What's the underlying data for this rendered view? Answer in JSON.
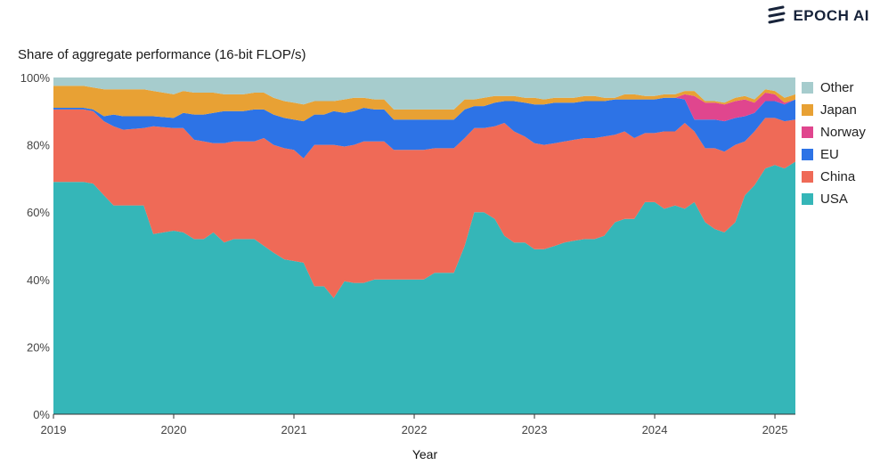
{
  "brand": {
    "name": "EPOCH AI",
    "icon": "epoch-logo-icon"
  },
  "chart_data": {
    "type": "area",
    "stacked": true,
    "normalized": true,
    "title": "Share of aggregate performance (16-bit FLOP/s)",
    "xlabel": "Year",
    "ylabel": "",
    "xlim": [
      2019.0,
      2025.17
    ],
    "ylim": [
      0,
      100
    ],
    "x_ticks": [
      2019,
      2020,
      2021,
      2022,
      2023,
      2024,
      2025
    ],
    "x_tick_labels": [
      "2019",
      "2020",
      "2021",
      "2022",
      "2023",
      "2024",
      "2025"
    ],
    "y_ticks": [
      0,
      20,
      40,
      60,
      80,
      100
    ],
    "y_tick_labels": [
      "0%",
      "20%",
      "40%",
      "60%",
      "80%",
      "100%"
    ],
    "legend_position": "right",
    "x": [
      2019.0,
      2019.25,
      2019.33,
      2019.42,
      2019.5,
      2019.58,
      2019.75,
      2019.83,
      2020.0,
      2020.08,
      2020.17,
      2020.25,
      2020.33,
      2020.42,
      2020.5,
      2020.58,
      2020.67,
      2020.75,
      2020.83,
      2020.92,
      2021.0,
      2021.08,
      2021.17,
      2021.25,
      2021.33,
      2021.42,
      2021.5,
      2021.58,
      2021.67,
      2021.75,
      2021.83,
      2022.0,
      2022.08,
      2022.17,
      2022.25,
      2022.33,
      2022.42,
      2022.5,
      2022.58,
      2022.67,
      2022.75,
      2022.83,
      2022.92,
      2023.0,
      2023.08,
      2023.17,
      2023.25,
      2023.33,
      2023.42,
      2023.5,
      2023.58,
      2023.67,
      2023.75,
      2023.83,
      2023.92,
      2024.0,
      2024.08,
      2024.17,
      2024.25,
      2024.33,
      2024.42,
      2024.5,
      2024.58,
      2024.67,
      2024.75,
      2024.83,
      2024.92,
      2025.0,
      2025.08,
      2025.17
    ],
    "series": [
      {
        "name": "USA",
        "color": "#35b6b8",
        "values": [
          69,
          69,
          68.5,
          65,
          62,
          62,
          62,
          53.5,
          54.5,
          54,
          52,
          52,
          54,
          51,
          52,
          52,
          52,
          50,
          48,
          46,
          45.5,
          45,
          38,
          38,
          34.5,
          39.5,
          39,
          39,
          40,
          40,
          40,
          40,
          40,
          42,
          42,
          42,
          50,
          60,
          60,
          58,
          53,
          51,
          51,
          49,
          49,
          50,
          51,
          51.5,
          52,
          52,
          53,
          57,
          58,
          58,
          63,
          63,
          61,
          62,
          61,
          63,
          57,
          55,
          54,
          57,
          65,
          68,
          73,
          74,
          73,
          75
        ]
      },
      {
        "name": "China",
        "color": "#ef6a57",
        "values": [
          21.5,
          21.5,
          21.5,
          22,
          23.5,
          22.5,
          23,
          32,
          30.5,
          31,
          29.5,
          29,
          26.5,
          29.5,
          29,
          29,
          29,
          32,
          32,
          33,
          33,
          31,
          42,
          42,
          45.5,
          40,
          41,
          42,
          41,
          41,
          38.5,
          38.5,
          38.5,
          37,
          37,
          37,
          32,
          25,
          25,
          27.5,
          33.5,
          33,
          31.5,
          31.5,
          31,
          30.5,
          30,
          30,
          30,
          30,
          29.5,
          26,
          26,
          24,
          20.5,
          20.5,
          23,
          22,
          25.5,
          21,
          22,
          24,
          24,
          23,
          16,
          16,
          15,
          14,
          14,
          12.5
        ]
      },
      {
        "name": "EU",
        "color": "#2d73e6",
        "values": [
          0.5,
          0.5,
          0.5,
          1.5,
          3.5,
          4,
          3.5,
          3,
          3,
          4.5,
          7.5,
          8,
          9,
          9.5,
          9,
          9,
          9.5,
          8.5,
          9,
          9,
          9,
          11,
          9,
          9,
          10,
          10,
          10,
          10,
          9.5,
          9.5,
          9,
          9,
          9,
          8.5,
          8.5,
          8.5,
          8.5,
          6.5,
          6.5,
          7,
          6.5,
          9,
          10,
          11.5,
          12,
          12,
          11.5,
          11,
          11,
          11,
          10.5,
          10.5,
          9.5,
          11.5,
          10,
          10,
          10,
          10,
          7,
          3.5,
          8.5,
          8.5,
          9,
          8,
          7.5,
          5.5,
          5,
          5,
          5,
          6
        ]
      },
      {
        "name": "Norway",
        "color": "#e0468e",
        "values": [
          0,
          0,
          0,
          0,
          0,
          0,
          0,
          0,
          0,
          0,
          0,
          0,
          0,
          0,
          0,
          0,
          0,
          0,
          0,
          0,
          0,
          0,
          0,
          0,
          0,
          0,
          0,
          0,
          0,
          0,
          0,
          0,
          0,
          0,
          0,
          0,
          0,
          0,
          0,
          0,
          0,
          0,
          0,
          0,
          0,
          0,
          0,
          0,
          0,
          0,
          0,
          0,
          0,
          0,
          0,
          0,
          0,
          0,
          1.5,
          7,
          5,
          5,
          5,
          5,
          5,
          3,
          2.5,
          2,
          0.5,
          0
        ]
      },
      {
        "name": "Japan",
        "color": "#e8a134",
        "values": [
          6.5,
          6.5,
          6.5,
          8,
          7.5,
          8,
          8,
          7.5,
          7,
          6.5,
          6.5,
          6.5,
          6,
          5,
          5,
          5,
          5,
          5,
          5,
          5,
          5,
          5,
          4,
          4,
          3,
          4,
          4,
          3,
          3,
          3,
          3,
          3,
          3,
          3,
          3,
          3,
          3,
          2,
          2.5,
          2,
          1.5,
          1.5,
          1.5,
          2,
          1.5,
          1.5,
          1.5,
          1.5,
          1.5,
          1.5,
          1,
          0.5,
          1.5,
          1.5,
          1,
          1,
          1,
          1,
          1,
          1.5,
          0.5,
          0.5,
          0.5,
          1,
          1,
          1,
          1,
          1,
          1.5,
          1.5
        ]
      },
      {
        "name": "Other",
        "color": "#a6cccd",
        "values": [
          2.5,
          2.5,
          3,
          3.5,
          3.5,
          3.5,
          3.5,
          4,
          5.5,
          4,
          4.5,
          4.5,
          4.5,
          5,
          5,
          5,
          4.5,
          4.5,
          6,
          7,
          7.5,
          8,
          7,
          7,
          7,
          6.5,
          6,
          6,
          6.5,
          6.5,
          9.5,
          9.5,
          9.5,
          9.5,
          9.5,
          9.5,
          6.5,
          6.5,
          6,
          5.5,
          5.5,
          5.5,
          6,
          6,
          6.5,
          6,
          6,
          6,
          5.5,
          5.5,
          6,
          6,
          5,
          5,
          5.5,
          5.5,
          5,
          5,
          4,
          4,
          7,
          7,
          7.5,
          6,
          5.5,
          6.5,
          3.5,
          4,
          6,
          5
        ]
      }
    ],
    "legend_order": [
      "Other",
      "Japan",
      "Norway",
      "EU",
      "China",
      "USA"
    ]
  }
}
